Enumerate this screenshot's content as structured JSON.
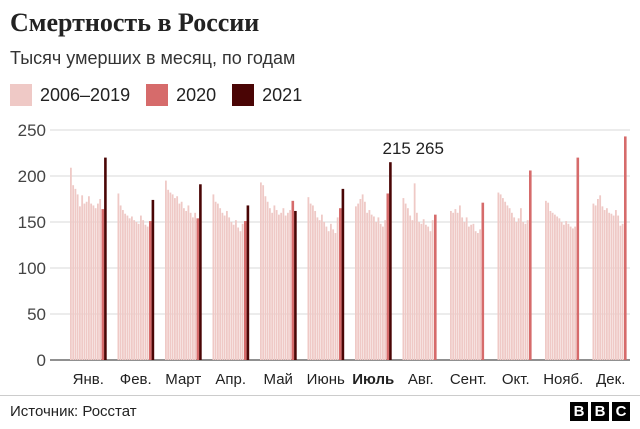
{
  "title": "Смертность в России",
  "subtitle": "Тысяч умерших в месяц, по годам",
  "legend": [
    {
      "label": "2006–2019",
      "color": "#efc9c6"
    },
    {
      "label": "2020",
      "color": "#d66b6b"
    },
    {
      "label": "2021",
      "color": "#4a0505"
    }
  ],
  "source": "Источник: Росстат",
  "brand": [
    "B",
    "B",
    "C"
  ],
  "chart_data": {
    "type": "bar",
    "categories": [
      "Янв.",
      "Фев.",
      "Март",
      "Апр.",
      "Май",
      "Июнь",
      "Июль",
      "Авг.",
      "Сент.",
      "Окт.",
      "Нояб.",
      "Дек."
    ],
    "highlight_category": "Июль",
    "annotation": {
      "text": "215 265",
      "category": "Июль"
    },
    "ylim": [
      0,
      250
    ],
    "yticks": [
      0,
      50,
      100,
      150,
      200,
      250
    ],
    "grid": true,
    "series": [
      {
        "name": "2006–2019",
        "color": "#efc9c6",
        "values": [
          [
            209,
            190,
            186,
            180,
            167,
            179,
            170,
            172,
            178,
            170,
            168,
            165,
            170,
            175
          ],
          [
            181,
            168,
            163,
            159,
            157,
            154,
            156,
            152,
            150,
            148,
            157,
            152,
            147,
            145
          ],
          [
            195,
            185,
            182,
            180,
            176,
            178,
            170,
            172,
            165,
            162,
            168,
            160,
            155,
            160
          ],
          [
            180,
            172,
            170,
            165,
            160,
            157,
            162,
            155,
            150,
            147,
            152,
            144,
            140,
            148
          ],
          [
            193,
            190,
            178,
            172,
            165,
            160,
            168,
            163,
            158,
            160,
            165,
            157,
            160,
            163
          ],
          [
            177,
            170,
            168,
            162,
            155,
            152,
            158,
            150,
            145,
            140,
            148,
            142,
            138,
            155
          ],
          [
            167,
            170,
            175,
            180,
            172,
            160,
            163,
            158,
            156,
            150,
            155,
            148,
            145,
            152
          ],
          [
            176,
            170,
            165,
            157,
            152,
            192,
            160,
            150,
            148,
            153,
            147,
            145,
            140,
            152
          ],
          [
            162,
            160,
            164,
            160,
            168,
            155,
            150,
            155,
            145,
            147,
            148,
            140,
            138,
            142
          ],
          [
            182,
            180,
            176,
            172,
            168,
            165,
            160,
            155,
            150,
            154,
            165,
            150,
            148,
            152
          ],
          [
            173,
            171,
            162,
            160,
            158,
            156,
            154,
            150,
            147,
            151,
            148,
            145,
            143,
            145
          ],
          [
            170,
            168,
            175,
            179,
            167,
            163,
            165,
            160,
            159,
            157,
            163,
            157,
            146,
            148
          ]
        ]
      },
      {
        "name": "2020",
        "color": "#d66b6b",
        "values": [
          164,
          151,
          154,
          151,
          173,
          165,
          181,
          158,
          171,
          206,
          220,
          243
        ]
      },
      {
        "name": "2021",
        "color": "#4a0505",
        "values": [
          220,
          174,
          191,
          168,
          162,
          186,
          215,
          null,
          null,
          null,
          null,
          null
        ]
      }
    ]
  }
}
